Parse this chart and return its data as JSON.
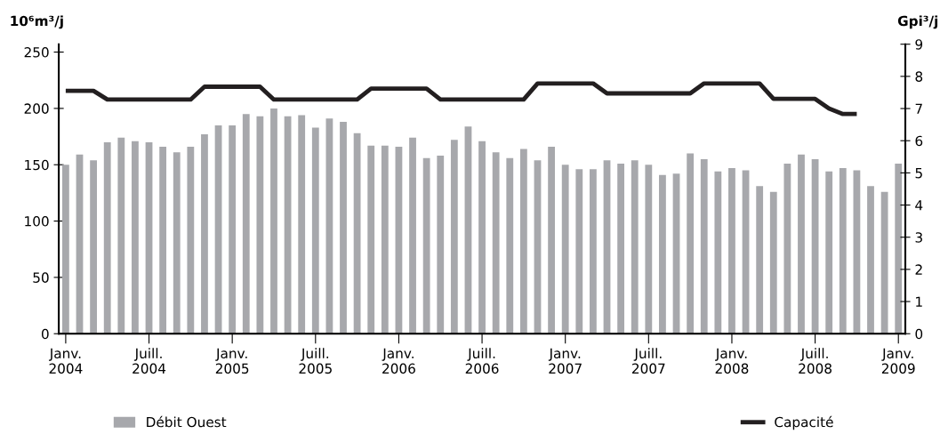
{
  "chart_data": {
    "type": "bar",
    "ylabel": "10⁶m³/j",
    "y2label": "Gpi³/j",
    "categories": [
      "Janv.\n2004",
      null,
      null,
      null,
      null,
      null,
      "Juill.\n2004",
      null,
      null,
      null,
      null,
      null,
      "Janv.\n2005",
      null,
      null,
      null,
      null,
      null,
      "Juill.\n2005",
      null,
      null,
      null,
      null,
      null,
      "Janv.\n2006",
      null,
      null,
      null,
      null,
      null,
      "Juill.\n2006",
      null,
      null,
      null,
      null,
      null,
      "Janv.\n2007",
      null,
      null,
      null,
      null,
      null,
      "Juill.\n2007",
      null,
      null,
      null,
      null,
      null,
      "Janv.\n2008",
      null,
      null,
      null,
      null,
      null,
      "Juill.\n2008",
      null,
      null,
      null,
      null,
      null,
      "Janv.\n2009"
    ],
    "series": [
      {
        "name": "Débit Ouest",
        "color": "#a7a8ac",
        "values": [
          150,
          159,
          154,
          170,
          174,
          171,
          170,
          166,
          161,
          166,
          177,
          185,
          185,
          195,
          193,
          200,
          193,
          194,
          183,
          191,
          188,
          178,
          167,
          167,
          166,
          174,
          156,
          158,
          172,
          184,
          171,
          161,
          156,
          164,
          154,
          166,
          150,
          146,
          146,
          154,
          151,
          154,
          150,
          141,
          142,
          160,
          155,
          144,
          147,
          145,
          131,
          126,
          151,
          159,
          155,
          144,
          147,
          145,
          131,
          126,
          151
        ]
      },
      {
        "name": "Capacité",
        "type": "line",
        "axis": "y2",
        "color": "#231f20",
        "values": [
          7.55,
          7.55,
          7.55,
          7.28,
          7.28,
          7.28,
          7.28,
          7.28,
          7.28,
          7.28,
          7.68,
          7.68,
          7.68,
          7.68,
          7.68,
          7.28,
          7.28,
          7.28,
          7.28,
          7.28,
          7.28,
          7.28,
          7.62,
          7.62,
          7.62,
          7.62,
          7.62,
          7.28,
          7.28,
          7.28,
          7.28,
          7.28,
          7.28,
          7.28,
          7.78,
          7.78,
          7.78,
          7.78,
          7.78,
          7.47,
          7.47,
          7.47,
          7.47,
          7.47,
          7.47,
          7.47,
          7.78,
          7.78,
          7.78,
          7.78,
          7.78,
          7.3,
          7.3,
          7.3,
          7.3,
          7.0,
          6.83,
          6.83,
          null,
          null,
          null
        ]
      }
    ],
    "ylim": [
      0,
      257
    ],
    "yticks": [
      0,
      50,
      100,
      150,
      200,
      250
    ],
    "y2lim": [
      0,
      9
    ],
    "y2ticks": [
      0,
      1,
      2,
      3,
      4,
      5,
      6,
      7,
      8,
      9
    ],
    "grid": false,
    "legend": "bottom"
  }
}
